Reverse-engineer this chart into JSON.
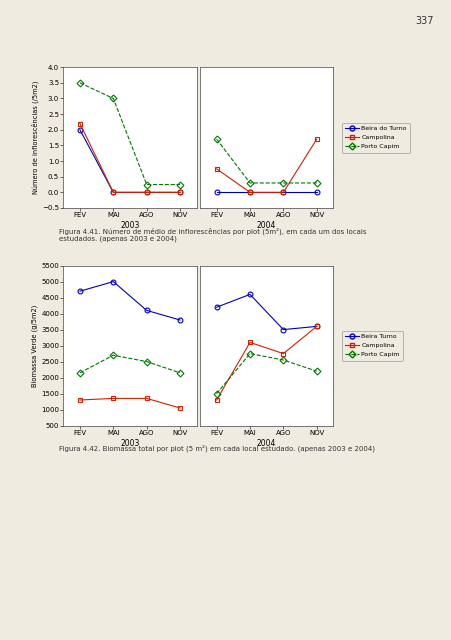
{
  "page_number": "337",
  "page_bg": "#f0ebe0",
  "chart_bg": "#ffffff",
  "fig1": {
    "ylabel": "Número de inflorescências (/5m2)",
    "xlabel_2003": "2003",
    "xlabel_2004": "2004",
    "x_labels": [
      "FEV",
      "MAI",
      "AGO",
      "NOV"
    ],
    "ylim": [
      -0.5,
      4.0
    ],
    "yticks": [
      -0.5,
      0.0,
      0.5,
      1.0,
      1.5,
      2.0,
      2.5,
      3.0,
      3.5,
      4.0
    ],
    "series": {
      "Beira do Turno": {
        "color": "#0000bb",
        "marker": "o",
        "linestyle": "-",
        "data_2003": [
          2.0,
          0.0,
          0.0,
          0.0
        ],
        "data_2004": [
          0.0,
          0.0,
          0.0,
          0.0
        ]
      },
      "Campolina": {
        "color": "#cc2200",
        "marker": "s",
        "linestyle": "-",
        "data_2003": [
          2.2,
          0.0,
          0.0,
          0.0
        ],
        "data_2004": [
          0.75,
          0.0,
          0.0,
          1.7
        ]
      },
      "Porto Capim": {
        "color": "#007700",
        "marker": "D",
        "linestyle": "--",
        "data_2003": [
          3.5,
          3.0,
          0.25,
          0.25
        ],
        "data_2004": [
          1.7,
          0.3,
          0.3,
          0.3
        ]
      }
    },
    "caption": "Figura 4.41. Número de médio de inflorescências por plot (5m²), em cada um dos locais\nestudados. (apenas 2003 e 2004)"
  },
  "fig2": {
    "ylabel": "Biomassa Verde (g/5m2)",
    "xlabel_2003": "2003",
    "xlabel_2004": "2004",
    "x_labels": [
      "FEV",
      "MAI",
      "AGO",
      "NOV"
    ],
    "ylim": [
      500,
      5500
    ],
    "yticks": [
      500,
      1000,
      1500,
      2000,
      2500,
      3000,
      3500,
      4000,
      4500,
      5000,
      5500
    ],
    "series": {
      "Beira Turno": {
        "color": "#0000bb",
        "marker": "o",
        "linestyle": "-",
        "data_2003": [
          4700,
          5000,
          4100,
          3800
        ],
        "data_2004": [
          4200,
          4600,
          3500,
          3600
        ]
      },
      "Campolina": {
        "color": "#cc2200",
        "marker": "s",
        "linestyle": "-",
        "data_2003": [
          1300,
          1350,
          1350,
          1050
        ],
        "data_2004": [
          1300,
          3100,
          2750,
          3600
        ]
      },
      "Porto Capim": {
        "color": "#007700",
        "marker": "D",
        "linestyle": "--",
        "data_2003": [
          2150,
          2700,
          2500,
          2150
        ],
        "data_2004": [
          1500,
          2750,
          2550,
          2200
        ]
      }
    },
    "caption": "Figura 4.42. Biomassa total por plot (5 m²) em cada local estudado. (apenas 2003 e 2004)"
  }
}
